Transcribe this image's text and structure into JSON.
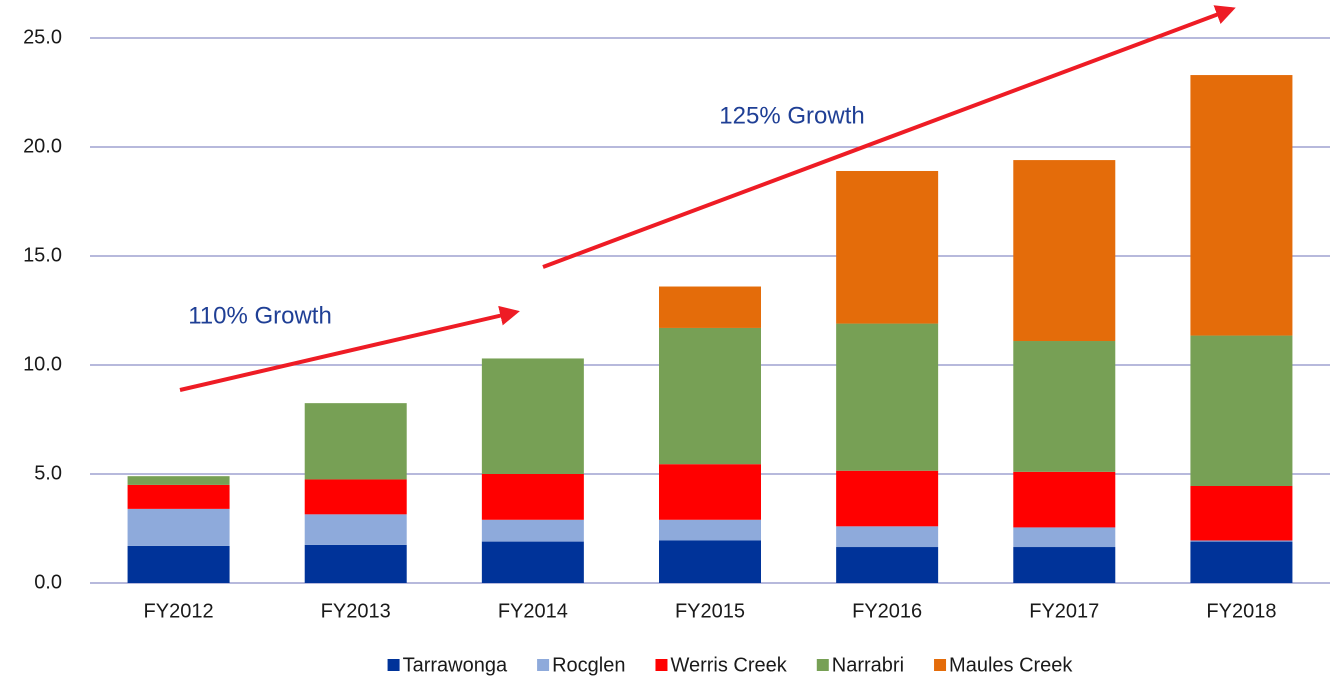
{
  "chart_data": {
    "type": "stacked_bar",
    "categories": [
      "FY2012",
      "FY2013",
      "FY2014",
      "FY2015",
      "FY2016",
      "FY2017",
      "FY2018"
    ],
    "series": [
      {
        "name": "Tarrawonga",
        "color": "#003399",
        "values": [
          1.7,
          1.75,
          1.9,
          1.95,
          1.65,
          1.65,
          1.9
        ]
      },
      {
        "name": "Rocglen",
        "color": "#8eaadb",
        "values": [
          1.7,
          1.4,
          1.0,
          0.95,
          0.95,
          0.9,
          0.05
        ]
      },
      {
        "name": "Werris Creek",
        "color": "#ff0000",
        "values": [
          1.1,
          1.6,
          2.1,
          2.55,
          2.55,
          2.55,
          2.5
        ]
      },
      {
        "name": "Narrabri",
        "color": "#77a055",
        "values": [
          0.4,
          3.5,
          5.3,
          6.25,
          6.75,
          6.0,
          6.9
        ]
      },
      {
        "name": "Maules Creek",
        "color": "#e46c0a",
        "values": [
          0,
          0,
          0,
          1.9,
          7.0,
          8.3,
          11.95
        ]
      }
    ],
    "ylim": [
      0,
      25
    ],
    "yticks": [
      {
        "value": 0,
        "label": "0.0"
      },
      {
        "value": 5,
        "label": "5.0"
      },
      {
        "value": 10,
        "label": "10.0"
      },
      {
        "value": 15,
        "label": "15.0"
      },
      {
        "value": 20,
        "label": "20.0"
      },
      {
        "value": 25,
        "label": "25.0"
      }
    ],
    "grid": true,
    "grid_color": "#8c8fc8",
    "legend": "bottom",
    "annotations": [
      "110% Growth",
      "125% Growth"
    ]
  }
}
